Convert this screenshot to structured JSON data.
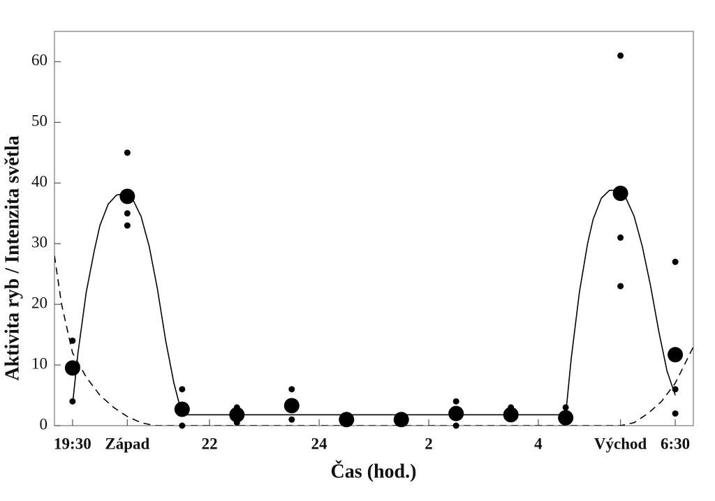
{
  "chart_data": {
    "type": "scatter",
    "x_label": "Čas (hod.)",
    "y_label": "Aktivita ryb / Intenzita světla",
    "xlim": [
      19.17,
      30.83
    ],
    "ylim": [
      0,
      65
    ],
    "xticks": [
      {
        "value": 19.5,
        "label": "19:30"
      },
      {
        "value": 20.5,
        "label": "Západ"
      },
      22,
      24,
      {
        "value": 26,
        "label": "2"
      },
      {
        "value": 28,
        "label": "4"
      },
      {
        "value": 29.5,
        "label": "Východ"
      },
      {
        "value": 30.5,
        "label": "6:30"
      }
    ],
    "yticks": [
      0,
      10,
      20,
      30,
      40,
      50,
      60
    ],
    "color": "#000000",
    "series": [
      {
        "kind": "points",
        "size": "small",
        "x": [
          19.5,
          19.5,
          20.5,
          20.5,
          20.5,
          21.5,
          21.5,
          22.5,
          22.5,
          23.5,
          23.5,
          24.5,
          25.5,
          26.5,
          26.5,
          27.5,
          28.5,
          29.5,
          29.5,
          29.5,
          30.5,
          30.5,
          30.5
        ],
        "values": [
          14,
          4,
          45,
          35,
          33,
          6,
          0,
          3,
          0.5,
          6,
          1,
          0.5,
          0.5,
          4,
          0,
          3,
          3,
          61,
          31,
          23,
          27,
          6,
          2
        ]
      },
      {
        "kind": "points",
        "size": "large",
        "x": [
          19.5,
          20.5,
          21.5,
          22.5,
          23.5,
          24.5,
          25.5,
          26.5,
          27.5,
          28.5,
          29.5,
          30.5
        ],
        "values": [
          9.5,
          37.8,
          2.7,
          1.8,
          3.3,
          1.0,
          1.0,
          2.0,
          1.8,
          1.3,
          38.3,
          11.7
        ]
      },
      {
        "kind": "line",
        "dashed": false,
        "x": [
          19.5,
          19.6,
          19.75,
          19.9,
          20.0,
          20.15,
          20.3,
          20.45,
          20.6,
          20.75,
          20.9,
          21.05,
          21.2,
          21.35,
          21.5,
          28.5,
          28.6,
          28.75,
          28.9,
          29.0,
          29.15,
          29.3,
          29.45,
          29.6,
          29.75,
          29.9,
          30.05,
          30.2,
          30.35,
          30.5
        ],
        "values": [
          3.5,
          12,
          22,
          29,
          33,
          36.5,
          38,
          38.3,
          37.3,
          34.5,
          29.5,
          22.5,
          14,
          7,
          1.8,
          1.8,
          11,
          22,
          30,
          34,
          37.5,
          38.8,
          38.8,
          37.5,
          34.5,
          29.5,
          23,
          15.5,
          9,
          5
        ]
      },
      {
        "kind": "line",
        "dashed": true,
        "x": [
          19.17,
          19.3,
          19.5,
          19.75,
          20.0,
          20.25,
          20.5,
          20.75,
          21.0,
          21.5,
          29.5,
          29.75,
          30.0,
          30.25,
          30.5,
          30.83
        ],
        "values": [
          28,
          20,
          12,
          8,
          5,
          3,
          1.5,
          0.5,
          0,
          0,
          0,
          0.5,
          2,
          4,
          7,
          13
        ]
      }
    ]
  }
}
